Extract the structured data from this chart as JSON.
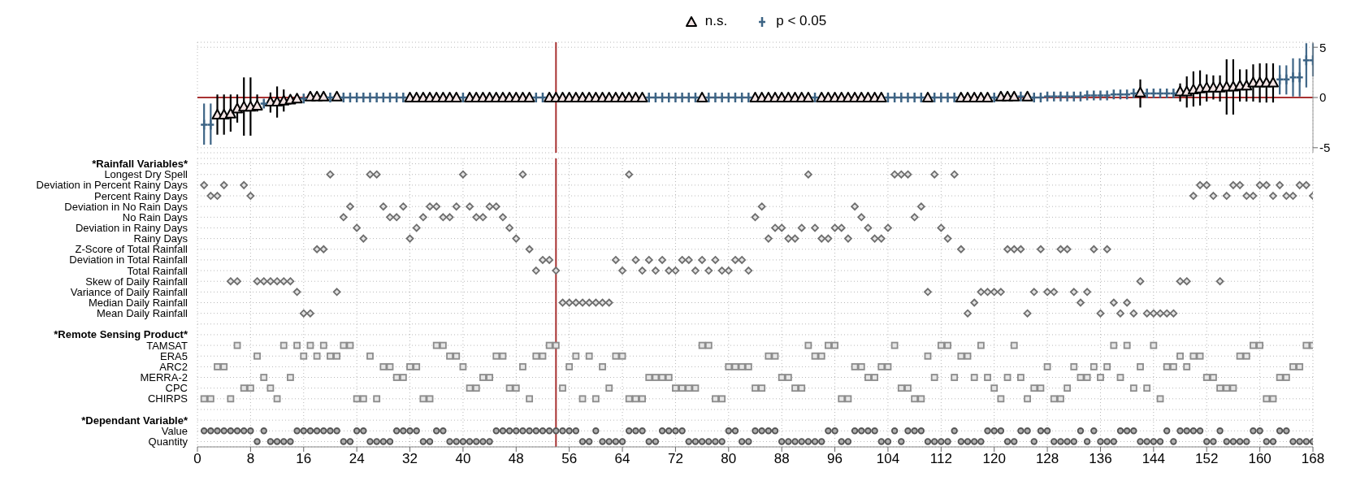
{
  "chart_data": [
    {
      "type": "scatter",
      "legend": "top",
      "grid": true,
      "tick_labels": "y",
      "xlim": [
        0,
        168
      ],
      "xticks": [
        0,
        8,
        16,
        24,
        32,
        40,
        48,
        56,
        64,
        72,
        80,
        88,
        96,
        104,
        112,
        120,
        128,
        136,
        144,
        152,
        160,
        168
      ],
      "ylim": [
        -5.5,
        5.5
      ],
      "yticks": [
        -5,
        0,
        5
      ],
      "ref_lines": [
        {
          "axis": "x",
          "value": 54,
          "color": "#a83232"
        },
        {
          "axis": "y",
          "value": 0,
          "color": "#a83232"
        }
      ],
      "series": [
        {
          "name": "n.s.",
          "color": "#000000",
          "marker": "triangle",
          "x": [
            3,
            4,
            5,
            6,
            7,
            8,
            9,
            11,
            12,
            13,
            14,
            15,
            17,
            18,
            19,
            21,
            32,
            33,
            34,
            35,
            36,
            37,
            38,
            39,
            41,
            42,
            43,
            44,
            45,
            46,
            47,
            48,
            49,
            50,
            53,
            54,
            55,
            56,
            57,
            58,
            59,
            60,
            61,
            62,
            63,
            64,
            65,
            66,
            67,
            76,
            84,
            85,
            86,
            87,
            88,
            89,
            90,
            91,
            92,
            94,
            95,
            96,
            97,
            98,
            99,
            100,
            101,
            102,
            103,
            110,
            115,
            116,
            117,
            118,
            119,
            121,
            122,
            123,
            125,
            142,
            148,
            149,
            150,
            151,
            152,
            153,
            154,
            155,
            156,
            157,
            158,
            159,
            160,
            161,
            162
          ],
          "values": [
            -1.7,
            -1.7,
            -1.6,
            -1.1,
            -0.9,
            -0.9,
            -0.8,
            -0.4,
            -0.4,
            -0.3,
            -0.2,
            -0.1,
            0.1,
            0.1,
            0.1,
            0.1,
            0,
            0,
            0,
            0,
            0,
            0,
            0,
            0,
            0,
            0,
            0,
            0,
            0,
            0,
            0,
            0,
            0,
            0,
            0,
            0,
            0,
            0,
            0,
            0,
            0,
            0,
            0,
            0,
            0,
            0,
            0,
            0,
            0,
            0,
            0,
            0,
            0,
            0,
            0,
            0,
            0,
            0,
            0,
            0,
            0,
            0,
            0,
            0,
            0,
            0,
            0,
            0,
            0,
            0,
            0,
            0,
            0,
            0,
            0,
            0.1,
            0.1,
            0.1,
            0.1,
            0.5,
            0.6,
            0.6,
            0.8,
            0.9,
            1.0,
            1.0,
            1.0,
            1.1,
            1.1,
            1.2,
            1.2,
            1.5,
            1.5,
            1.5,
            1.5
          ],
          "errors": [
            [
              -3.7,
              0.3
            ],
            [
              -3.7,
              0.3
            ],
            [
              -3.4,
              0.3
            ],
            [
              -2.5,
              0.3
            ],
            [
              -3.8,
              2.0
            ],
            [
              -3.8,
              2.0
            ],
            [
              -1.4,
              0.3
            ],
            [
              -1.5,
              0.5
            ],
            [
              -2.0,
              1.1
            ],
            [
              -1.4,
              0.8
            ],
            [
              -0.7,
              0.2
            ],
            [
              -0.4,
              0.2
            ],
            null,
            null,
            null,
            null,
            null,
            null,
            null,
            null,
            null,
            null,
            null,
            null,
            null,
            null,
            null,
            null,
            null,
            null,
            null,
            null,
            null,
            null,
            null,
            null,
            null,
            null,
            null,
            null,
            null,
            null,
            null,
            null,
            null,
            null,
            null,
            null,
            null,
            null,
            null,
            null,
            null,
            null,
            null,
            null,
            null,
            null,
            null,
            null,
            null,
            null,
            null,
            null,
            null,
            null,
            null,
            null,
            null,
            null,
            null,
            null,
            null,
            null,
            null,
            null,
            null,
            null,
            null,
            [
              -1.0,
              1.8
            ],
            [
              -0.4,
              1.4
            ],
            [
              -1.0,
              2.1
            ],
            [
              -0.9,
              2.6
            ],
            [
              -0.8,
              2.7
            ],
            [
              -0.4,
              2.3
            ],
            [
              -0.2,
              2.2
            ],
            [
              -0.4,
              2.2
            ],
            [
              -1.7,
              3.8
            ],
            [
              -1.7,
              3.8
            ],
            [
              -0.4,
              2.8
            ],
            [
              -0.4,
              2.8
            ],
            [
              -0.4,
              3.3
            ],
            [
              -0.5,
              3.4
            ],
            [
              -0.5,
              3.4
            ],
            [
              -0.5,
              3.4
            ]
          ]
        },
        {
          "name": "p < 0.05",
          "color": "#3d6485",
          "marker": "cross",
          "x": [
            1,
            2,
            10,
            16,
            20,
            22,
            23,
            24,
            25,
            26,
            27,
            28,
            29,
            30,
            31,
            40,
            51,
            52,
            68,
            69,
            70,
            71,
            72,
            73,
            74,
            75,
            77,
            78,
            79,
            80,
            81,
            82,
            83,
            93,
            104,
            105,
            106,
            107,
            108,
            109,
            111,
            112,
            113,
            114,
            120,
            124,
            126,
            127,
            128,
            129,
            130,
            131,
            132,
            133,
            134,
            135,
            136,
            137,
            138,
            139,
            140,
            141,
            143,
            144,
            145,
            146,
            147,
            163,
            164,
            165,
            166,
            167,
            168
          ],
          "values": [
            -2.7,
            -2.7,
            -0.6,
            -0.1,
            0,
            0,
            0,
            0,
            0,
            0,
            0,
            0,
            0,
            0,
            0,
            0,
            0,
            0,
            0,
            0,
            0,
            0,
            0,
            0,
            0,
            0,
            0,
            0,
            0,
            0,
            0,
            0,
            0,
            0,
            0,
            0,
            0,
            0,
            0,
            0,
            0,
            0,
            0,
            0,
            0,
            0.1,
            0,
            0,
            0.1,
            0.1,
            0.1,
            0.1,
            0.1,
            0.1,
            0.2,
            0.2,
            0.2,
            0.2,
            0.3,
            0.3,
            0.3,
            0.4,
            0.4,
            0.4,
            0.4,
            0.4,
            0.4,
            1.8,
            1.8,
            2.0,
            2.0,
            3.7,
            3.7
          ],
          "errors": [
            [
              -4.7,
              -0.6
            ],
            [
              -4.7,
              -0.6
            ],
            null,
            null,
            null,
            null,
            null,
            null,
            null,
            null,
            null,
            null,
            null,
            null,
            null,
            null,
            null,
            null,
            null,
            null,
            null,
            null,
            null,
            null,
            null,
            null,
            null,
            null,
            null,
            null,
            null,
            null,
            null,
            null,
            null,
            null,
            null,
            null,
            null,
            null,
            null,
            null,
            null,
            null,
            null,
            null,
            null,
            null,
            null,
            null,
            null,
            null,
            null,
            null,
            null,
            null,
            null,
            null,
            null,
            null,
            null,
            null,
            null,
            null,
            null,
            null,
            null,
            [
              0.3,
              3.2
            ],
            [
              0.3,
              3.2
            ],
            [
              0.1,
              3.9
            ],
            [
              0.1,
              3.9
            ],
            [
              1.0,
              5.4
            ],
            [
              2.1,
              5.4
            ]
          ]
        }
      ]
    },
    {
      "type": "scatter",
      "orientation": "horizontal",
      "grid": true,
      "xlim": [
        0,
        168
      ],
      "xticks": [
        0,
        8,
        16,
        24,
        32,
        40,
        48,
        56,
        64,
        72,
        80,
        88,
        96,
        104,
        112,
        120,
        128,
        136,
        144,
        152,
        160,
        168
      ],
      "ref_lines": [
        {
          "axis": "x",
          "value": 54,
          "color": "#a83232"
        }
      ],
      "categories": [
        "*Rainfall Variables*",
        "Longest Dry Spell",
        "Deviation in Percent Rainy Days",
        "Percent Rainy Days",
        "Deviation in No Rain Days",
        "No Rain Days",
        "Deviation in Rainy Days",
        "Rainy Days",
        "Z-Score of Total Rainfall",
        "Deviation in Total Rainfall",
        "Total Rainfall",
        "Skew of Daily Rainfall",
        "Variance of Daily Rainfall",
        "Median Daily Rainfall",
        "Mean Daily Rainfall",
        null,
        "*Remote Sensing Product*",
        "TAMSAT",
        "ERA5",
        "ARC2",
        "MERRA-2",
        "CPC",
        "CHIRPS",
        null,
        "*Dependant Variable*",
        "Value",
        "Quantity"
      ],
      "series": [
        {
          "color": "#6e6e6e",
          "marker": "diamond",
          "values": [
            1,
            2,
            3,
            4,
            5,
            6,
            7,
            8,
            9,
            10,
            11,
            12,
            13,
            14,
            15,
            16,
            17,
            18,
            19,
            20,
            21,
            22,
            23,
            24,
            25,
            26,
            27,
            28,
            29,
            30,
            31,
            32,
            33,
            34,
            35,
            36,
            37,
            38,
            39,
            40,
            41,
            42,
            43,
            44,
            45,
            46,
            47,
            48,
            49,
            50,
            51,
            52,
            53,
            54,
            55,
            56,
            57,
            58,
            59,
            60,
            61,
            62,
            63,
            64,
            65,
            66,
            67,
            68,
            69,
            70,
            71,
            72,
            73,
            74,
            75,
            76,
            77,
            78,
            79,
            80,
            81,
            82,
            83,
            84,
            85,
            86,
            87,
            88,
            89,
            90,
            91,
            92,
            93,
            94,
            95,
            96,
            97,
            98,
            99,
            100,
            101,
            102,
            103,
            104,
            105,
            106,
            107,
            108,
            109,
            110,
            111,
            112,
            113,
            114,
            115,
            116,
            117,
            118,
            119,
            120,
            121,
            122,
            123,
            124,
            125,
            126,
            127,
            128,
            129,
            130,
            131,
            132,
            133,
            134,
            135,
            136,
            137,
            138,
            139,
            140,
            141,
            142,
            143,
            144,
            145,
            146,
            147,
            148,
            149,
            150,
            151,
            152,
            153,
            154,
            155,
            156,
            157,
            158,
            159,
            160,
            161,
            162,
            163,
            164,
            165,
            166,
            167,
            168
          ],
          "x": [
            "Deviation in Percent Rainy Days",
            "Percent Rainy Days",
            "Percent Rainy Days",
            "Deviation in Percent Rainy Days",
            "Skew of Daily Rainfall",
            "Skew of Daily Rainfall",
            "Deviation in Percent Rainy Days",
            "Percent Rainy Days",
            "Skew of Daily Rainfall",
            "Skew of Daily Rainfall",
            "Skew of Daily Rainfall",
            "Skew of Daily Rainfall",
            "Skew of Daily Rainfall",
            "Skew of Daily Rainfall",
            "Variance of Daily Rainfall",
            "Mean Daily Rainfall",
            "Mean Daily Rainfall",
            "Z-Score of Total Rainfall",
            "Z-Score of Total Rainfall",
            "Longest Dry Spell",
            "Variance of Daily Rainfall",
            "No Rain Days",
            "Deviation in No Rain Days",
            "Deviation in Rainy Days",
            "Rainy Days",
            "Longest Dry Spell",
            "Longest Dry Spell",
            "Deviation in No Rain Days",
            "No Rain Days",
            "No Rain Days",
            "Deviation in No Rain Days",
            "Rainy Days",
            "Deviation in Rainy Days",
            "No Rain Days",
            "Deviation in No Rain Days",
            "Deviation in No Rain Days",
            "No Rain Days",
            "No Rain Days",
            "Deviation in No Rain Days",
            "Longest Dry Spell",
            "Deviation in No Rain Days",
            "No Rain Days",
            "No Rain Days",
            "Deviation in No Rain Days",
            "Deviation in No Rain Days",
            "No Rain Days",
            "Deviation in Rainy Days",
            "Rainy Days",
            "Longest Dry Spell",
            "Z-Score of Total Rainfall",
            "Total Rainfall",
            "Deviation in Total Rainfall",
            "Deviation in Total Rainfall",
            "Total Rainfall",
            "Median Daily Rainfall",
            "Median Daily Rainfall",
            "Median Daily Rainfall",
            "Median Daily Rainfall",
            "Median Daily Rainfall",
            "Median Daily Rainfall",
            "Median Daily Rainfall",
            "Median Daily Rainfall",
            "Deviation in Total Rainfall",
            "Total Rainfall",
            "Longest Dry Spell",
            "Deviation in Total Rainfall",
            "Total Rainfall",
            "Deviation in Total Rainfall",
            "Total Rainfall",
            "Deviation in Total Rainfall",
            "Total Rainfall",
            "Total Rainfall",
            "Deviation in Total Rainfall",
            "Deviation in Total Rainfall",
            "Total Rainfall",
            "Deviation in Total Rainfall",
            "Total Rainfall",
            "Deviation in Total Rainfall",
            "Total Rainfall",
            "Total Rainfall",
            "Deviation in Total Rainfall",
            "Deviation in Total Rainfall",
            "Total Rainfall",
            "No Rain Days",
            "Deviation in No Rain Days",
            "Rainy Days",
            "Deviation in Rainy Days",
            "Deviation in Rainy Days",
            "Rainy Days",
            "Rainy Days",
            "Deviation in Rainy Days",
            "Longest Dry Spell",
            "Deviation in Rainy Days",
            "Rainy Days",
            "Rainy Days",
            "Deviation in Rainy Days",
            "Deviation in Rainy Days",
            "Rainy Days",
            "Deviation in No Rain Days",
            "No Rain Days",
            "Deviation in Rainy Days",
            "Rainy Days",
            "Rainy Days",
            "Deviation in Rainy Days",
            "Longest Dry Spell",
            "Longest Dry Spell",
            "Longest Dry Spell",
            "No Rain Days",
            "Deviation in No Rain Days",
            "Variance of Daily Rainfall",
            "Longest Dry Spell",
            "Deviation in Rainy Days",
            "Rainy Days",
            "Longest Dry Spell",
            "Z-Score of Total Rainfall",
            "Mean Daily Rainfall",
            "Median Daily Rainfall",
            "Variance of Daily Rainfall",
            "Variance of Daily Rainfall",
            "Variance of Daily Rainfall",
            "Variance of Daily Rainfall",
            "Z-Score of Total Rainfall",
            "Z-Score of Total Rainfall",
            "Z-Score of Total Rainfall",
            "Mean Daily Rainfall",
            "Variance of Daily Rainfall",
            "Z-Score of Total Rainfall",
            "Variance of Daily Rainfall",
            "Variance of Daily Rainfall",
            "Z-Score of Total Rainfall",
            "Z-Score of Total Rainfall",
            "Variance of Daily Rainfall",
            "Median Daily Rainfall",
            "Variance of Daily Rainfall",
            "Z-Score of Total Rainfall",
            "Mean Daily Rainfall",
            "Z-Score of Total Rainfall",
            "Median Daily Rainfall",
            "Mean Daily Rainfall",
            "Median Daily Rainfall",
            "Mean Daily Rainfall",
            "Skew of Daily Rainfall",
            "Mean Daily Rainfall",
            "Mean Daily Rainfall",
            "Mean Daily Rainfall",
            "Mean Daily Rainfall",
            "Mean Daily Rainfall",
            "Skew of Daily Rainfall",
            "Skew of Daily Rainfall",
            "Percent Rainy Days",
            "Deviation in Percent Rainy Days",
            "Deviation in Percent Rainy Days",
            "Percent Rainy Days",
            "Skew of Daily Rainfall",
            "Percent Rainy Days",
            "Deviation in Percent Rainy Days",
            "Deviation in Percent Rainy Days",
            "Percent Rainy Days",
            "Percent Rainy Days",
            "Deviation in Percent Rainy Days",
            "Deviation in Percent Rainy Days",
            "Percent Rainy Days",
            "Deviation in Percent Rainy Days",
            "Percent Rainy Days",
            "Percent Rainy Days",
            "Deviation in Percent Rainy Days",
            "Deviation in Percent Rainy Days",
            "Percent Rainy Days"
          ]
        },
        {
          "color": "#8c8c8c",
          "marker": "square",
          "values": [
            1,
            2,
            3,
            4,
            5,
            6,
            7,
            8,
            9,
            10,
            11,
            12,
            13,
            14,
            15,
            16,
            17,
            18,
            19,
            20,
            21,
            22,
            23,
            24,
            25,
            26,
            27,
            28,
            29,
            30,
            31,
            32,
            33,
            34,
            35,
            36,
            37,
            38,
            39,
            40,
            41,
            42,
            43,
            44,
            45,
            46,
            47,
            48,
            49,
            50,
            51,
            52,
            53,
            54,
            55,
            56,
            57,
            58,
            59,
            60,
            61,
            62,
            63,
            64,
            65,
            66,
            67,
            68,
            69,
            70,
            71,
            72,
            73,
            74,
            75,
            76,
            77,
            78,
            79,
            80,
            81,
            82,
            83,
            84,
            85,
            86,
            87,
            88,
            89,
            90,
            91,
            92,
            93,
            94,
            95,
            96,
            97,
            98,
            99,
            100,
            101,
            102,
            103,
            104,
            105,
            106,
            107,
            108,
            109,
            110,
            111,
            112,
            113,
            114,
            115,
            116,
            117,
            118,
            119,
            120,
            121,
            122,
            123,
            124,
            125,
            126,
            127,
            128,
            129,
            130,
            131,
            132,
            133,
            134,
            135,
            136,
            137,
            138,
            139,
            140,
            141,
            142,
            143,
            144,
            145,
            146,
            147,
            148,
            149,
            150,
            151,
            152,
            153,
            154,
            155,
            156,
            157,
            158,
            159,
            160,
            161,
            162,
            163,
            164,
            165,
            166,
            167,
            168
          ],
          "x": [
            "CHIRPS",
            "CHIRPS",
            "ARC2",
            "ARC2",
            "CHIRPS",
            "TAMSAT",
            "CPC",
            "CPC",
            "ERA5",
            "MERRA-2",
            "CPC",
            "CHIRPS",
            "TAMSAT",
            "MERRA-2",
            "TAMSAT",
            "ERA5",
            "TAMSAT",
            "ERA5",
            "TAMSAT",
            "ERA5",
            "ERA5",
            "TAMSAT",
            "TAMSAT",
            "CHIRPS",
            "CHIRPS",
            "ERA5",
            "CHIRPS",
            "ARC2",
            "ARC2",
            "MERRA-2",
            "MERRA-2",
            "ARC2",
            "ARC2",
            "CHIRPS",
            "CHIRPS",
            "TAMSAT",
            "TAMSAT",
            "ERA5",
            "ERA5",
            "ARC2",
            "CPC",
            "CPC",
            "MERRA-2",
            "MERRA-2",
            "ERA5",
            "ERA5",
            "CPC",
            "CPC",
            "ARC2",
            "CHIRPS",
            "ERA5",
            "ERA5",
            "TAMSAT",
            "TAMSAT",
            "CPC",
            "ARC2",
            "ERA5",
            "CHIRPS",
            "ERA5",
            "CHIRPS",
            "ARC2",
            "CPC",
            "ERA5",
            "ERA5",
            "CHIRPS",
            "CHIRPS",
            "CHIRPS",
            "MERRA-2",
            "MERRA-2",
            "MERRA-2",
            "MERRA-2",
            "CPC",
            "CPC",
            "CPC",
            "CPC",
            "TAMSAT",
            "TAMSAT",
            "CHIRPS",
            "CHIRPS",
            "ARC2",
            "ARC2",
            "ARC2",
            "ARC2",
            "CPC",
            "CPC",
            "ERA5",
            "ERA5",
            "MERRA-2",
            "MERRA-2",
            "CPC",
            "CPC",
            "TAMSAT",
            "ERA5",
            "ERA5",
            "TAMSAT",
            "TAMSAT",
            "CHIRPS",
            "CHIRPS",
            "ARC2",
            "ARC2",
            "MERRA-2",
            "MERRA-2",
            "ARC2",
            "ARC2",
            "TAMSAT",
            "CPC",
            "CPC",
            "CHIRPS",
            "CHIRPS",
            "ERA5",
            "MERRA-2",
            "TAMSAT",
            "TAMSAT",
            "MERRA-2",
            "ERA5",
            "ERA5",
            "MERRA-2",
            "TAMSAT",
            "MERRA-2",
            "CPC",
            "CHIRPS",
            "MERRA-2",
            "TAMSAT",
            "MERRA-2",
            "CHIRPS",
            "CPC",
            "CPC",
            "ARC2",
            "CHIRPS",
            "CHIRPS",
            "CPC",
            "ARC2",
            "MERRA-2",
            "MERRA-2",
            "ARC2",
            "MERRA-2",
            "ARC2",
            "TAMSAT",
            "MERRA-2",
            "TAMSAT",
            "CPC",
            "ARC2",
            "CPC",
            "TAMSAT",
            "CHIRPS",
            "ARC2",
            "ARC2",
            "ERA5",
            "ARC2",
            "ERA5",
            "ERA5",
            "MERRA-2",
            "MERRA-2",
            "CPC",
            "CPC",
            "CPC",
            "ERA5",
            "ERA5",
            "TAMSAT",
            "TAMSAT",
            "CHIRPS",
            "CHIRPS",
            "MERRA-2",
            "MERRA-2",
            "ARC2",
            "ARC2",
            "TAMSAT",
            "TAMSAT"
          ]
        },
        {
          "color": "#555555",
          "marker": "circle",
          "values": [
            1,
            2,
            3,
            4,
            5,
            6,
            7,
            8,
            9,
            10,
            11,
            12,
            13,
            14,
            15,
            16,
            17,
            18,
            19,
            20,
            21,
            22,
            23,
            24,
            25,
            26,
            27,
            28,
            29,
            30,
            31,
            32,
            33,
            34,
            35,
            36,
            37,
            38,
            39,
            40,
            41,
            42,
            43,
            44,
            45,
            46,
            47,
            48,
            49,
            50,
            51,
            52,
            53,
            54,
            55,
            56,
            57,
            58,
            59,
            60,
            61,
            62,
            63,
            64,
            65,
            66,
            67,
            68,
            69,
            70,
            71,
            72,
            73,
            74,
            75,
            76,
            77,
            78,
            79,
            80,
            81,
            82,
            83,
            84,
            85,
            86,
            87,
            88,
            89,
            90,
            91,
            92,
            93,
            94,
            95,
            96,
            97,
            98,
            99,
            100,
            101,
            102,
            103,
            104,
            105,
            106,
            107,
            108,
            109,
            110,
            111,
            112,
            113,
            114,
            115,
            116,
            117,
            118,
            119,
            120,
            121,
            122,
            123,
            124,
            125,
            126,
            127,
            128,
            129,
            130,
            131,
            132,
            133,
            134,
            135,
            136,
            137,
            138,
            139,
            140,
            141,
            142,
            143,
            144,
            145,
            146,
            147,
            148,
            149,
            150,
            151,
            152,
            153,
            154,
            155,
            156,
            157,
            158,
            159,
            160,
            161,
            162,
            163,
            164,
            165,
            166,
            167,
            168
          ],
          "x": [
            "Value",
            "Value",
            "Value",
            "Value",
            "Value",
            "Value",
            "Value",
            "Value",
            "Quantity",
            "Value",
            "Quantity",
            "Quantity",
            "Quantity",
            "Quantity",
            "Value",
            "Value",
            "Value",
            "Value",
            "Value",
            "Value",
            "Value",
            "Quantity",
            "Quantity",
            "Value",
            "Value",
            "Quantity",
            "Quantity",
            "Quantity",
            "Quantity",
            "Value",
            "Value",
            "Value",
            "Value",
            "Quantity",
            "Quantity",
            "Value",
            "Value",
            "Quantity",
            "Quantity",
            "Quantity",
            "Quantity",
            "Quantity",
            "Quantity",
            "Quantity",
            "Value",
            "Value",
            "Value",
            "Value",
            "Value",
            "Value",
            "Value",
            "Value",
            "Value",
            "Value",
            "Value",
            "Value",
            "Value",
            "Quantity",
            "Quantity",
            "Value",
            "Quantity",
            "Quantity",
            "Quantity",
            "Quantity",
            "Value",
            "Value",
            "Value",
            "Quantity",
            "Quantity",
            "Value",
            "Value",
            "Value",
            "Value",
            "Quantity",
            "Quantity",
            "Quantity",
            "Quantity",
            "Quantity",
            "Quantity",
            "Value",
            "Value",
            "Quantity",
            "Quantity",
            "Value",
            "Value",
            "Value",
            "Value",
            "Quantity",
            "Quantity",
            "Quantity",
            "Quantity",
            "Quantity",
            "Quantity",
            "Quantity",
            "Value",
            "Value",
            "Quantity",
            "Quantity",
            "Value",
            "Value",
            "Value",
            "Value",
            "Quantity",
            "Quantity",
            "Value",
            "Quantity",
            "Value",
            "Value",
            "Value",
            "Quantity",
            "Quantity",
            "Quantity",
            "Quantity",
            "Value",
            "Quantity",
            "Quantity",
            "Quantity",
            "Quantity",
            "Value",
            "Value",
            "Value",
            "Quantity",
            "Quantity",
            "Value",
            "Value",
            "Quantity",
            "Value",
            "Value",
            "Quantity",
            "Quantity",
            "Quantity",
            "Quantity",
            "Value",
            "Quantity",
            "Value",
            "Quantity",
            "Quantity",
            "Quantity",
            "Value",
            "Value",
            "Value",
            "Quantity",
            "Quantity",
            "Quantity",
            "Quantity",
            "Value",
            "Quantity",
            "Value",
            "Value",
            "Value",
            "Value",
            "Quantity",
            "Quantity",
            "Value",
            "Quantity",
            "Quantity",
            "Quantity",
            "Quantity",
            "Value",
            "Value",
            "Quantity",
            "Quantity",
            "Value",
            "Value",
            "Quantity",
            "Quantity",
            "Quantity",
            "Quantity"
          ]
        }
      ]
    }
  ]
}
